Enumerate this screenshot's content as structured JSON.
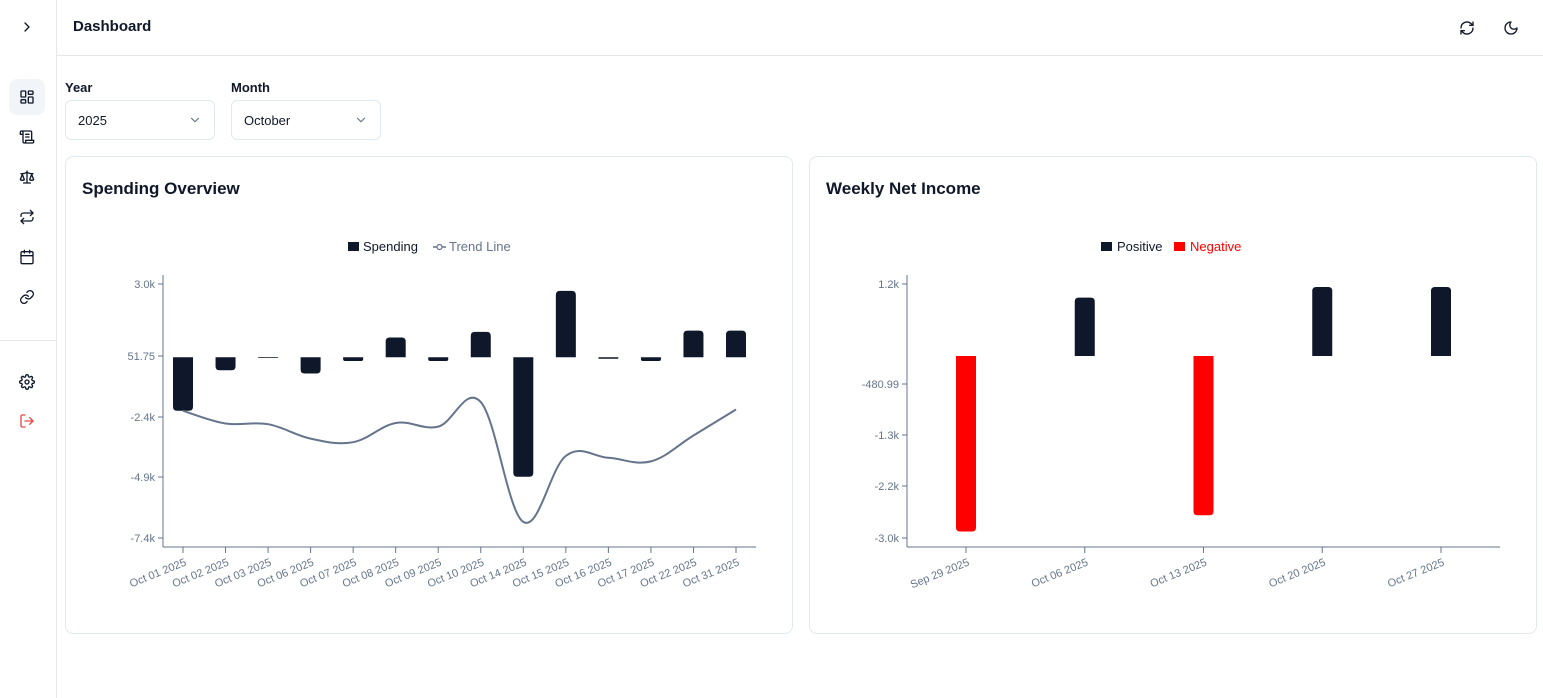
{
  "header": {
    "title": "Dashboard",
    "refresh_icon": "refresh-icon",
    "theme_icon": "moon-icon"
  },
  "sidebar": {
    "toggle_icon": "chevron-right-icon",
    "items": [
      {
        "name": "dashboard",
        "icon": "layout-grid-icon",
        "active": true
      },
      {
        "name": "transactions",
        "icon": "scroll-icon"
      },
      {
        "name": "balance",
        "icon": "scale-icon"
      },
      {
        "name": "transfers",
        "icon": "arrows-swap-icon"
      },
      {
        "name": "calendar",
        "icon": "calendar-icon"
      },
      {
        "name": "links",
        "icon": "link-icon"
      }
    ],
    "bottom_items": [
      {
        "name": "settings",
        "icon": "gear-icon"
      },
      {
        "name": "logout",
        "icon": "logout-icon",
        "color": "#ef4444"
      }
    ]
  },
  "filters": {
    "year": {
      "label": "Year",
      "value": "2025"
    },
    "month": {
      "label": "Month",
      "value": "October"
    }
  },
  "cards": {
    "spending": {
      "title": "Spending Overview"
    },
    "weekly": {
      "title": "Weekly Net Income"
    }
  },
  "chart_data": [
    {
      "type": "bar",
      "title": "Spending Overview",
      "legend": [
        {
          "name": "Spending",
          "color": "#0f172a",
          "marker": "square"
        },
        {
          "name": "Trend Line",
          "color": "#64748b",
          "marker": "line-circle"
        }
      ],
      "legend_placement": "top-center",
      "categories": [
        "Oct 01 2025",
        "Oct 02 2025",
        "Oct 03 2025",
        "Oct 06 2025",
        "Oct 07 2025",
        "Oct 08 2025",
        "Oct 09 2025",
        "Oct 10 2025",
        "Oct 14 2025",
        "Oct 15 2025",
        "Oct 16 2025",
        "Oct 17 2025",
        "Oct 22 2025",
        "Oct 31 2025"
      ],
      "yticks": [
        3000,
        51.75,
        -2400,
        -4900,
        -7400
      ],
      "ytick_labels": [
        "3.0k",
        "51.75",
        "-2.4k",
        "-4.9k",
        "-7.4k"
      ],
      "ylim": [
        -7400,
        3000
      ],
      "series": [
        {
          "name": "Spending",
          "type": "bar",
          "color": "#0f172a",
          "values": [
            -2150,
            -520,
            -30,
            -650,
            -150,
            810,
            -150,
            1040,
            -4890,
            2720,
            -60,
            -150,
            1090,
            1090
          ]
        },
        {
          "name": "Trend Line",
          "type": "line",
          "color": "#64748b",
          "values": [
            -2150,
            -2670,
            -2700,
            -3300,
            -3450,
            -2650,
            -2800,
            -1800,
            -6740,
            -4020,
            -4100,
            -4250,
            -3170,
            -2100
          ]
        }
      ],
      "grid": false
    },
    {
      "type": "bar",
      "title": "Weekly Net Income",
      "legend": [
        {
          "name": "Positive",
          "color": "#0f172a"
        },
        {
          "name": "Negative",
          "color": "#ff0000"
        }
      ],
      "legend_placement": "top-center",
      "categories": [
        "Sep 29 2025",
        "Oct 06 2025",
        "Oct 13 2025",
        "Oct 20 2025",
        "Oct 27 2025"
      ],
      "yticks": [
        1200,
        -480.99,
        -1300,
        -2200,
        -3000
      ],
      "ytick_labels": [
        "1.2k",
        "-480.99",
        "-1.3k",
        "-2.2k",
        "-3.0k"
      ],
      "ylim": [
        -3000,
        1200
      ],
      "baseline": 0,
      "values": [
        -2900,
        970,
        -2650,
        1150,
        1150
      ],
      "grid": false
    }
  ]
}
